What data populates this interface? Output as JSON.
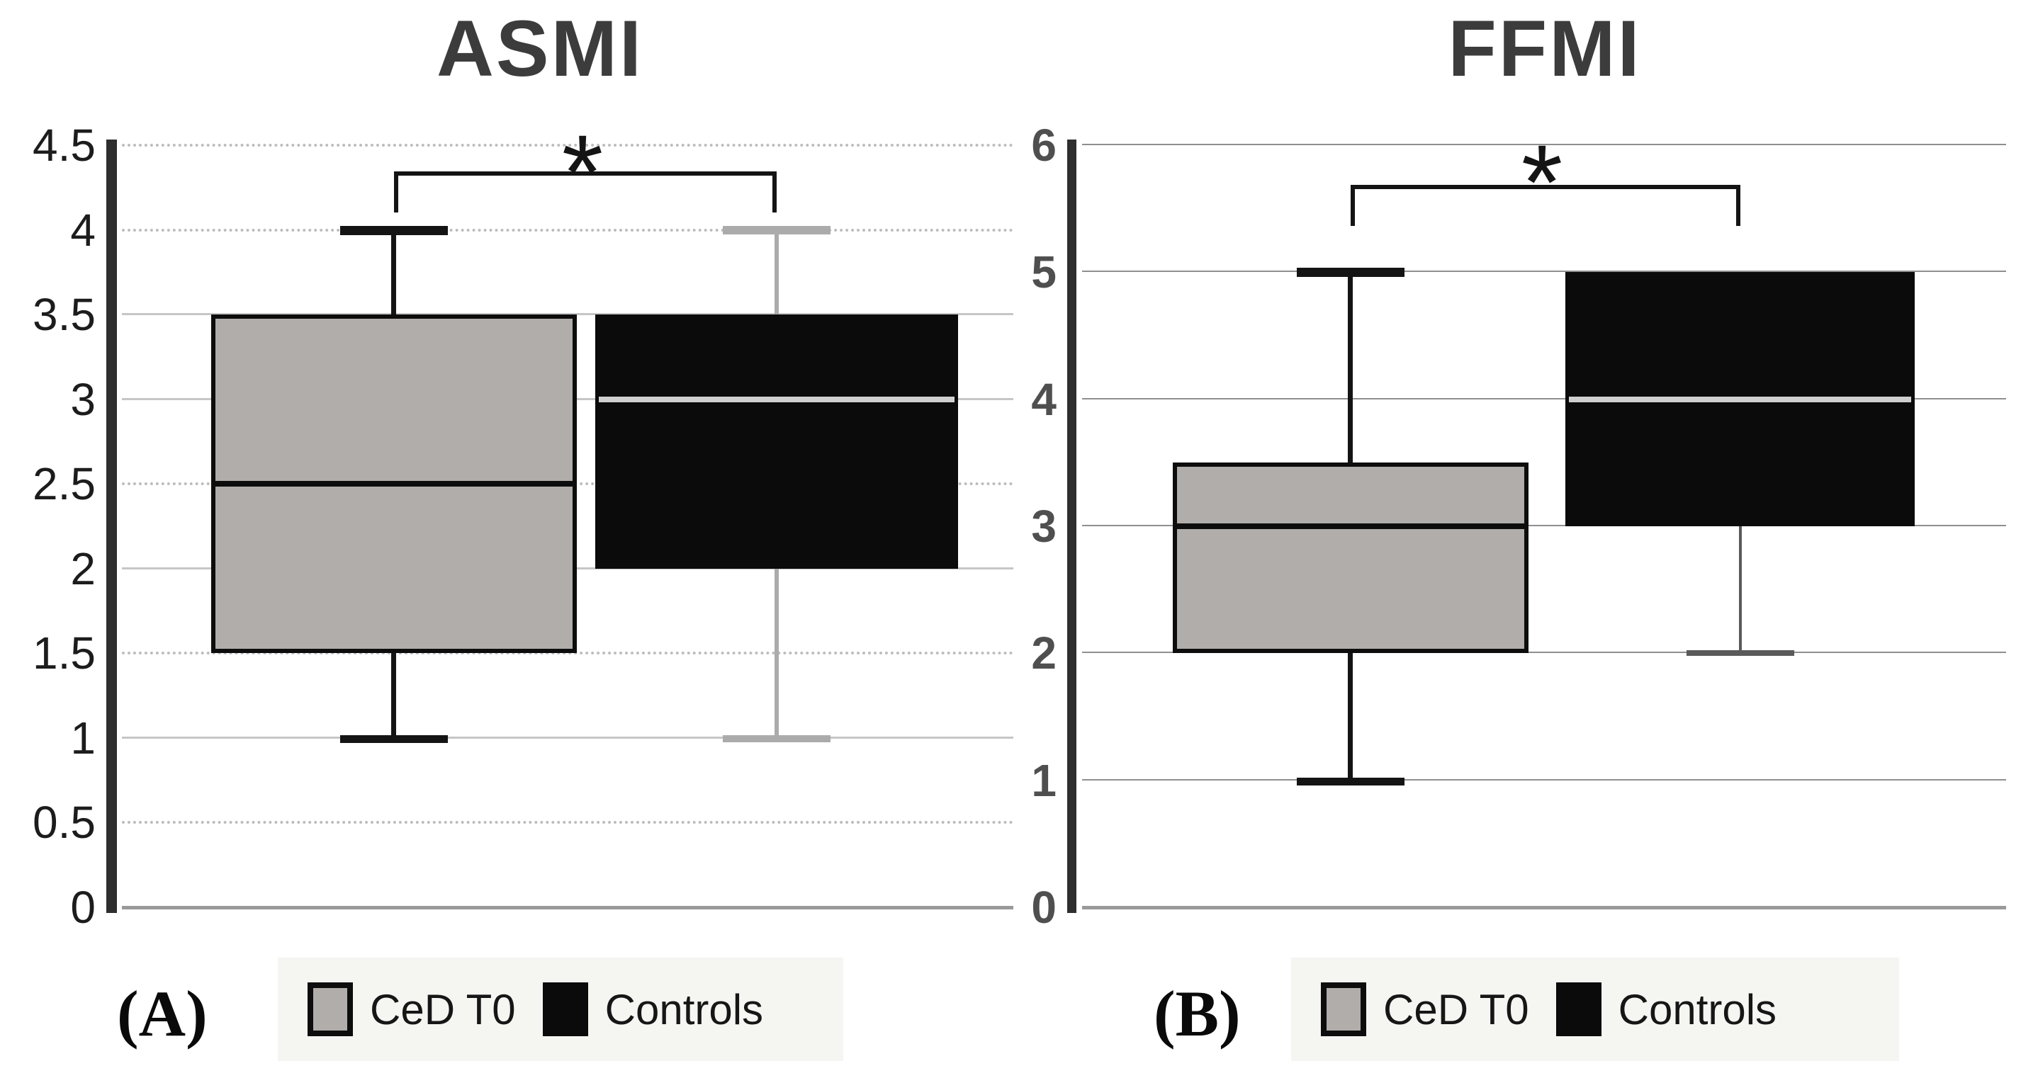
{
  "chart_data": [
    {
      "type": "boxplot",
      "panel_label": "(A)",
      "title": "ASMI",
      "xlabel": "",
      "ylabel": "",
      "ylim": [
        0,
        4.5
      ],
      "ytick_values": [
        4.5,
        4,
        3.5,
        3,
        2.5,
        2,
        1.5,
        1,
        0.5,
        0
      ],
      "ytick_labels": [
        "4.5",
        "4",
        "3.5",
        "3",
        "2.5",
        "2",
        "1.5",
        "1",
        "0.5",
        "0"
      ],
      "grid": true,
      "legend_position": "bottom",
      "significance": {
        "symbol": "*",
        "between": [
          "CeD T0",
          "Controls"
        ]
      },
      "series": [
        {
          "name": "CeD T0",
          "box_color": "#b1adaa",
          "border_color": "#0d0d0d",
          "median_color": "#0d0d0d",
          "whisker_color": "#141414",
          "whisker_thickness": 7,
          "min": 1,
          "q1": 1.5,
          "median": 2.5,
          "q3": 3.5,
          "max": 4
        },
        {
          "name": "Controls",
          "box_color": "#0b0b0b",
          "border_color": "#0b0b0b",
          "median_color": "#cfcfcf",
          "whisker_color": "#ababab",
          "whisker_thickness": 6,
          "min": 1,
          "q1": 2,
          "median": 3,
          "q3": 3.5,
          "max": 4
        }
      ]
    },
    {
      "type": "boxplot",
      "panel_label": "(B)",
      "title": "FFMI",
      "xlabel": "",
      "ylabel": "",
      "ylim": [
        0,
        6
      ],
      "ytick_values": [
        6,
        5,
        4,
        3,
        2,
        1,
        0
      ],
      "ytick_labels": [
        "6",
        "5",
        "4",
        "3",
        "2",
        "1",
        "0"
      ],
      "grid": true,
      "legend_position": "bottom",
      "significance": {
        "symbol": "*",
        "between": [
          "CeD T0",
          "Controls"
        ]
      },
      "series": [
        {
          "name": "CeD T0",
          "box_color": "#b1adaa",
          "border_color": "#0d0d0d",
          "median_color": "#0d0d0d",
          "whisker_color": "#141414",
          "whisker_thickness": 7,
          "min": 1,
          "q1": 2,
          "median": 3,
          "q3": 3.5,
          "max": 5
        },
        {
          "name": "Controls",
          "box_color": "#0b0b0b",
          "border_color": "#0b0b0b",
          "median_color": "#cfcfcf",
          "whisker_color": "#5a5a5a",
          "whisker_thickness": 4,
          "min": 2,
          "q1": 3,
          "median": 4,
          "q3": 5,
          "max": 5
        }
      ]
    }
  ]
}
